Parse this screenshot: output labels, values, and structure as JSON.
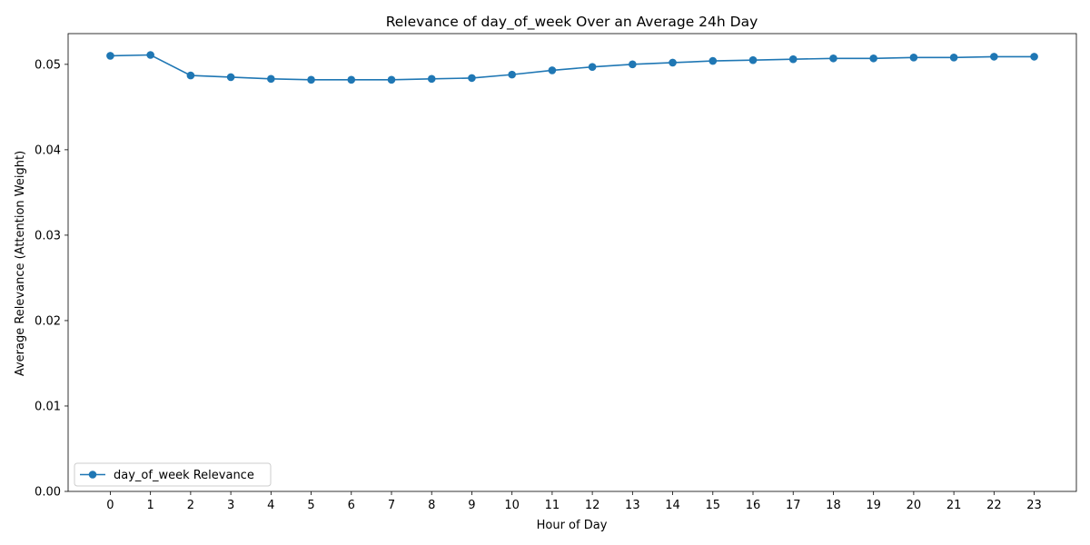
{
  "chart_data": {
    "type": "line",
    "title": "Relevance of day_of_week Over an Average 24h Day",
    "xlabel": "Hour of Day",
    "ylabel": "Average Relevance (Attention Weight)",
    "x": [
      0,
      1,
      2,
      3,
      4,
      5,
      6,
      7,
      8,
      9,
      10,
      11,
      12,
      13,
      14,
      15,
      16,
      17,
      18,
      19,
      20,
      21,
      22,
      23
    ],
    "x_tick_labels": [
      "0",
      "1",
      "2",
      "3",
      "4",
      "5",
      "6",
      "7",
      "8",
      "9",
      "10",
      "11",
      "12",
      "13",
      "14",
      "15",
      "16",
      "17",
      "18",
      "19",
      "20",
      "21",
      "22",
      "23"
    ],
    "xlim": [
      -1.05,
      24.05
    ],
    "ylim": [
      0,
      0.0536
    ],
    "y_ticks": [
      0.0,
      0.01,
      0.02,
      0.03,
      0.04,
      0.05
    ],
    "y_tick_labels": [
      "0.00",
      "0.01",
      "0.02",
      "0.03",
      "0.04",
      "0.05"
    ],
    "series": [
      {
        "name": "day_of_week Relevance",
        "color": "#1f77b4",
        "marker": "circle",
        "values": [
          0.051,
          0.0511,
          0.0487,
          0.0485,
          0.0483,
          0.0482,
          0.0482,
          0.0482,
          0.0483,
          0.0484,
          0.0488,
          0.0493,
          0.0497,
          0.05,
          0.0502,
          0.0504,
          0.0505,
          0.0506,
          0.0507,
          0.0507,
          0.0508,
          0.0508,
          0.0509,
          0.0509
        ]
      }
    ],
    "legend": {
      "location": "lower-left"
    },
    "grid": false
  }
}
